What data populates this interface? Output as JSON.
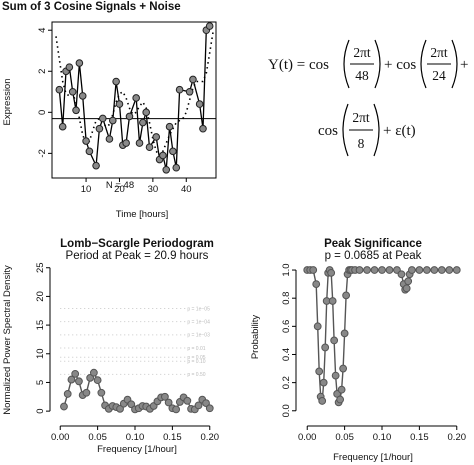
{
  "chart_data": [
    {
      "type": "line",
      "title": "Sum of 3 Cosine Signals + Noise",
      "xlabel": "Time [hours]",
      "ylabel": "Expression",
      "annotation": "N = 48",
      "xticks": [
        10,
        20,
        30,
        40
      ],
      "yticks": [
        -2,
        0,
        2,
        4
      ],
      "xlim": [
        1,
        48
      ],
      "ylim": [
        -3.2,
        4.4
      ],
      "grid": false,
      "series": [
        {
          "role": "observed",
          "x": [
            2,
            3,
            4,
            5,
            6,
            7,
            8,
            9,
            10,
            11,
            13,
            14,
            15,
            17,
            18,
            19,
            20,
            21,
            22,
            23,
            25,
            26,
            27,
            28,
            29,
            31,
            32,
            33,
            34,
            35,
            36,
            37,
            38,
            41,
            42,
            44,
            45,
            46,
            47
          ],
          "values": [
            1.1,
            -0.7,
            2.0,
            2.2,
            1.0,
            0.1,
            2.4,
            0.8,
            -1.4,
            -1.9,
            -2.6,
            -0.8,
            -0.3,
            -1.3,
            -0.4,
            1.5,
            0.4,
            -1.6,
            -1.5,
            -0.2,
            0.7,
            -1.5,
            -0.5,
            0.0,
            -1.7,
            -1.2,
            -2.3,
            -2.1,
            -2.8,
            -0.7,
            -1.9,
            -2.7,
            1.1,
            1.0,
            1.6,
            0.4,
            -0.8,
            4.0,
            4.2
          ]
        },
        {
          "role": "model",
          "style": "dotted",
          "x": [
            1,
            2,
            3,
            4,
            5,
            6,
            7,
            8,
            9,
            10,
            11,
            12,
            13,
            14,
            15,
            16,
            17,
            18,
            19,
            20,
            21,
            22,
            23,
            24,
            25,
            26,
            27,
            28,
            29,
            30,
            31,
            32,
            33,
            34,
            35,
            36,
            37,
            38,
            39,
            40,
            41,
            42,
            43,
            44,
            45,
            46,
            47,
            48
          ],
          "values": [
            3.7,
            2.6,
            1.5,
            0.9,
            0.8,
            0.9,
            0.5,
            -0.3,
            -1.1,
            -1.5,
            -1.4,
            -0.9,
            -0.4,
            -0.3,
            -0.5,
            -0.7,
            -0.6,
            -0.1,
            0.5,
            0.9,
            1.0,
            0.7,
            0.2,
            -0.1,
            0.0,
            0.3,
            0.5,
            0.2,
            -0.5,
            -1.3,
            -1.9,
            -2.1,
            -1.9,
            -1.5,
            -1.1,
            -0.8,
            -0.5,
            -0.4,
            -0.3,
            0.0,
            0.6,
            1.2,
            1.5,
            1.5,
            1.5,
            1.9,
            2.9,
            3.9
          ]
        }
      ]
    },
    {
      "type": "scatter",
      "title": "Lomb−Scargle Periodogram",
      "subtitle": "Period at Peak = 20.9 hours",
      "xlabel": "Frequency [1/hour]",
      "ylabel": "Normalized Power Spectral Density",
      "xticks": [
        0.0,
        0.05,
        0.1,
        0.15,
        0.2
      ],
      "yticks": [
        0,
        5,
        10,
        15,
        20,
        25
      ],
      "xlim": [
        -0.007,
        0.207
      ],
      "ylim": [
        -0.5,
        26
      ],
      "significance_levels": [
        {
          "label": "p = 1e−05",
          "value": 17.9
        },
        {
          "label": "p = 1e−04",
          "value": 15.6
        },
        {
          "label": "p = 1e−03",
          "value": 13.3
        },
        {
          "label": "p = 0.01",
          "value": 11.0
        },
        {
          "label": "p = 0.05",
          "value": 9.4
        },
        {
          "label": "p = 0.10",
          "value": 8.7
        },
        {
          "label": "p = 0.50",
          "value": 6.4
        }
      ],
      "series": [
        {
          "x": [
            0.005,
            0.01,
            0.015,
            0.02,
            0.025,
            0.03,
            0.035,
            0.04,
            0.045,
            0.05,
            0.055,
            0.06,
            0.065,
            0.07,
            0.075,
            0.08,
            0.085,
            0.09,
            0.095,
            0.1,
            0.105,
            0.11,
            0.115,
            0.12,
            0.125,
            0.13,
            0.135,
            0.14,
            0.145,
            0.15,
            0.155,
            0.16,
            0.165,
            0.17,
            0.175,
            0.18,
            0.185,
            0.19,
            0.195,
            0.2
          ],
          "values": [
            0.8,
            3.0,
            5.5,
            6.5,
            5.2,
            2.8,
            3.2,
            5.8,
            6.7,
            5.4,
            3.2,
            1.0,
            0.4,
            0.9,
            0.7,
            0.4,
            1.3,
            2.0,
            1.2,
            0.3,
            0.5,
            0.9,
            0.8,
            0.4,
            0.9,
            1.7,
            2.4,
            2.5,
            1.5,
            0.5,
            0.3,
            1.6,
            2.4,
            1.8,
            0.4,
            0.3,
            1.0,
            2.0,
            1.4,
            0.5
          ]
        }
      ]
    },
    {
      "type": "line",
      "title": "Peak Significance",
      "subtitle": "p =  0.0685  at Peak",
      "xlabel": "Frequency [1/hour]",
      "ylabel": "Probability",
      "xticks": [
        0.0,
        0.05,
        0.1,
        0.15,
        0.2
      ],
      "yticks": [
        0.0,
        0.2,
        0.4,
        0.6,
        0.8,
        1.0
      ],
      "xlim": [
        -0.007,
        0.207
      ],
      "ylim": [
        -0.03,
        1.05
      ],
      "series": [
        {
          "x": [
            0.0,
            0.004,
            0.008,
            0.012,
            0.014,
            0.016,
            0.018,
            0.02,
            0.022,
            0.024,
            0.026,
            0.028,
            0.03,
            0.032,
            0.034,
            0.036,
            0.038,
            0.04,
            0.042,
            0.044,
            0.046,
            0.048,
            0.05,
            0.052,
            0.054,
            0.056,
            0.058,
            0.06,
            0.064,
            0.07,
            0.08,
            0.09,
            0.1,
            0.11,
            0.12,
            0.126,
            0.129,
            0.131,
            0.133,
            0.135,
            0.137,
            0.14,
            0.15,
            0.16,
            0.17,
            0.18,
            0.19,
            0.2
          ],
          "values": [
            1.0,
            1.0,
            1.0,
            0.9,
            0.6,
            0.28,
            0.1,
            0.07,
            0.2,
            0.45,
            0.78,
            0.98,
            1.0,
            0.98,
            0.78,
            0.5,
            0.25,
            0.12,
            0.06,
            0.08,
            0.15,
            0.3,
            0.55,
            0.82,
            0.97,
            1.0,
            1.0,
            1.0,
            1.0,
            1.0,
            1.0,
            1.0,
            1.0,
            1.0,
            1.0,
            0.97,
            0.9,
            0.86,
            0.87,
            0.92,
            0.97,
            1.0,
            1.0,
            1.0,
            1.0,
            1.0,
            1.0,
            1.0
          ]
        }
      ]
    }
  ],
  "equation": {
    "lhs": "Y(t) = cos",
    "t1_num": "2πt",
    "t1_den": "48",
    "t2_pre": "+ cos",
    "t2_num": "2πt",
    "t2_den": "24",
    "t2_post": "+",
    "t3_pre": "cos",
    "t3_num": "2πt",
    "t3_den": "8",
    "t3_post": "+ ε(t)"
  }
}
